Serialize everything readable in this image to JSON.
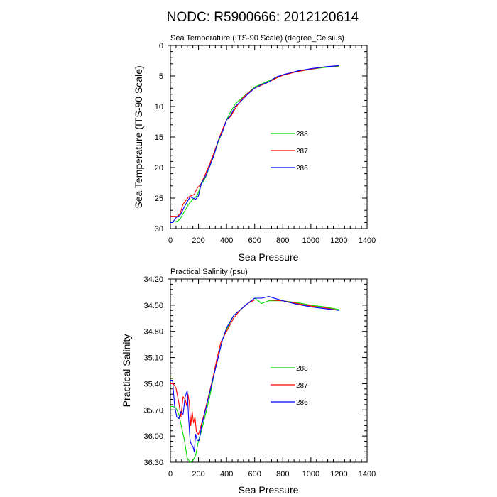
{
  "title": "NODC: R5900666: 2012120614",
  "chart_data": [
    {
      "type": "line",
      "title": "Sea Temperature (ITS-90 Scale) (degree_Celsius)",
      "xlabel": "Sea Pressure",
      "ylabel": "Sea Temperature (ITS-90 Scale)",
      "xlim": [
        0,
        1400
      ],
      "ylim": [
        0,
        30
      ],
      "y_inverted": true,
      "xticks": [
        0,
        200,
        400,
        600,
        800,
        1000,
        1200,
        1400
      ],
      "xtick_labels": [
        "0",
        "200",
        "400",
        "600",
        "800",
        "1000",
        "1200",
        "1400"
      ],
      "yticks": [
        0,
        5,
        10,
        15,
        20,
        25,
        30
      ],
      "ytick_labels": [
        "0",
        "5",
        "10",
        "15",
        "20",
        "25",
        "30"
      ],
      "legend_position": "center-right",
      "series": [
        {
          "name": "288",
          "color": "#00dd00",
          "x": [
            0,
            20,
            50,
            70,
            100,
            130,
            160,
            190,
            220,
            250,
            280,
            310,
            340,
            370,
            400,
            430,
            460,
            500,
            550,
            600,
            650,
            700,
            750,
            800,
            900,
            1000,
            1100,
            1200
          ],
          "y": [
            28.9,
            28.9,
            28.8,
            28.4,
            27.2,
            26.0,
            25.2,
            24.6,
            22.8,
            21.6,
            19.8,
            18.0,
            15.8,
            14.2,
            12.2,
            10.8,
            9.6,
            8.8,
            7.8,
            6.8,
            6.3,
            5.8,
            5.3,
            4.8,
            4.3,
            3.9,
            3.6,
            3.4
          ]
        },
        {
          "name": "287",
          "color": "#ff0000",
          "x": [
            0,
            20,
            50,
            70,
            90,
            110,
            130,
            150,
            170,
            190,
            220,
            250,
            280,
            310,
            340,
            370,
            400,
            430,
            460,
            500,
            550,
            600,
            650,
            700,
            750,
            800,
            900,
            1000,
            1100,
            1200
          ],
          "y": [
            28.0,
            28.0,
            28.0,
            27.5,
            26.0,
            25.4,
            24.8,
            24.6,
            24.4,
            23.4,
            22.6,
            21.0,
            19.4,
            17.6,
            15.6,
            13.8,
            12.2,
            11.6,
            10.4,
            9.0,
            7.8,
            7.0,
            6.5,
            6.0,
            5.4,
            4.9,
            4.3,
            3.9,
            3.5,
            3.3
          ]
        },
        {
          "name": "286",
          "color": "#0000ff",
          "x": [
            0,
            15,
            40,
            70,
            100,
            120,
            140,
            160,
            180,
            200,
            220,
            250,
            280,
            310,
            340,
            370,
            400,
            430,
            460,
            500,
            550,
            600,
            650,
            700,
            750,
            800,
            900,
            1000,
            1100,
            1200
          ],
          "y": [
            29.0,
            29.0,
            28.2,
            27.8,
            26.4,
            25.6,
            24.8,
            25.0,
            25.2,
            24.6,
            22.6,
            21.4,
            19.8,
            18.0,
            15.6,
            14.2,
            12.2,
            11.4,
            10.0,
            9.2,
            8.0,
            7.0,
            6.4,
            6.0,
            5.2,
            4.8,
            4.2,
            3.8,
            3.5,
            3.3
          ]
        }
      ]
    },
    {
      "type": "line",
      "title": "Practical Salinity (psu)",
      "xlabel": "Sea Pressure",
      "ylabel": "Practical Salinity",
      "xlim": [
        0,
        1400
      ],
      "ylim": [
        34.2,
        36.3
      ],
      "y_inverted": true,
      "xticks": [
        0,
        200,
        400,
        600,
        800,
        1000,
        1200,
        1400
      ],
      "xtick_labels": [
        "0",
        "200",
        "400",
        "600",
        "800",
        "1000",
        "1200",
        "1400"
      ],
      "yticks": [
        34.2,
        34.5,
        34.8,
        35.1,
        35.4,
        35.7,
        36.0,
        36.3
      ],
      "ytick_labels": [
        "34.20",
        "34.50",
        "34.80",
        "35.10",
        "35.40",
        "35.70",
        "36.00",
        "36.30"
      ],
      "legend_position": "center-right",
      "series": [
        {
          "name": "288",
          "color": "#00dd00",
          "x": [
            0,
            20,
            40,
            60,
            80,
            100,
            120,
            140,
            160,
            180,
            200,
            220,
            250,
            280,
            310,
            340,
            370,
            400,
            450,
            500,
            550,
            600,
            650,
            700,
            800,
            900,
            1000,
            1100,
            1200
          ],
          "y": [
            35.66,
            35.66,
            35.68,
            35.75,
            35.9,
            36.05,
            36.25,
            36.3,
            36.28,
            36.22,
            36.05,
            35.95,
            35.75,
            35.55,
            35.3,
            35.1,
            34.9,
            34.78,
            34.62,
            34.55,
            34.48,
            34.42,
            34.48,
            34.45,
            34.45,
            34.47,
            34.5,
            34.52,
            34.55
          ]
        },
        {
          "name": "287",
          "color": "#ff0000",
          "x": [
            0,
            20,
            40,
            60,
            75,
            90,
            105,
            115,
            125,
            135,
            145,
            155,
            165,
            175,
            185,
            200,
            215,
            240,
            270,
            300,
            330,
            360,
            400,
            450,
            500,
            550,
            600,
            650,
            700,
            800,
            900,
            1000,
            1100,
            1200
          ],
          "y": [
            35.4,
            35.4,
            35.45,
            35.62,
            35.78,
            35.55,
            35.58,
            35.65,
            35.52,
            35.62,
            35.88,
            35.72,
            35.85,
            35.78,
            35.95,
            35.98,
            35.9,
            35.75,
            35.55,
            35.35,
            35.12,
            34.92,
            34.8,
            34.65,
            34.55,
            34.48,
            34.44,
            34.44,
            34.44,
            34.45,
            34.48,
            34.51,
            34.53,
            34.56
          ]
        },
        {
          "name": "286",
          "color": "#0000ff",
          "x": [
            0,
            15,
            30,
            45,
            60,
            75,
            90,
            105,
            120,
            130,
            140,
            150,
            160,
            170,
            180,
            190,
            205,
            220,
            250,
            280,
            310,
            340,
            370,
            400,
            450,
            500,
            550,
            600,
            650,
            700,
            800,
            900,
            1000,
            1100,
            1200
          ],
          "y": [
            35.36,
            35.36,
            35.65,
            35.78,
            35.8,
            35.72,
            35.75,
            35.55,
            35.48,
            35.8,
            36.05,
            36.1,
            36.12,
            36.18,
            35.98,
            36.05,
            36.05,
            35.9,
            35.7,
            35.5,
            35.3,
            35.1,
            34.9,
            34.76,
            34.62,
            34.55,
            34.48,
            34.42,
            34.42,
            34.4,
            34.45,
            34.49,
            34.52,
            34.54,
            34.56
          ]
        }
      ]
    }
  ]
}
